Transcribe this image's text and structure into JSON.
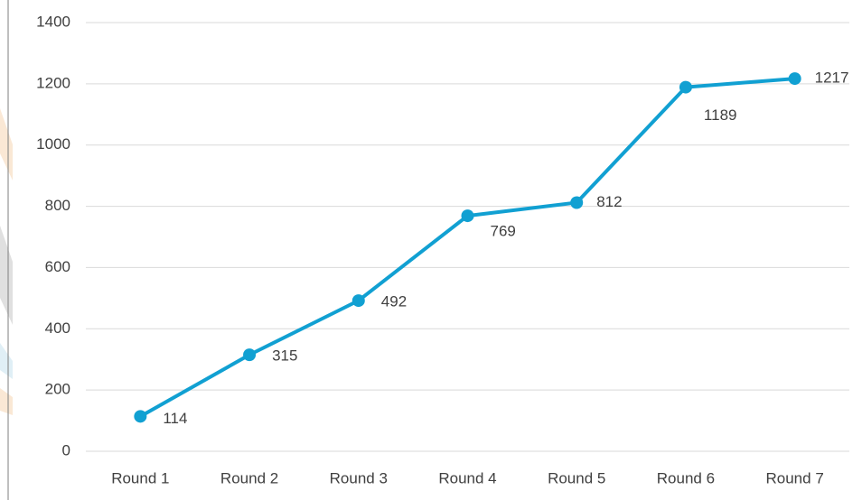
{
  "chart_data": {
    "type": "line",
    "categories": [
      "Round 1",
      "Round 2",
      "Round 3",
      "Round 4",
      "Round 5",
      "Round 6",
      "Round 7"
    ],
    "values": [
      114,
      315,
      492,
      769,
      812,
      1189,
      1217
    ],
    "color": "#11a0d2",
    "ylim": [
      0,
      1400
    ],
    "yticks": [
      0,
      200,
      400,
      600,
      800,
      1000,
      1200,
      1400
    ],
    "grid": true
  }
}
